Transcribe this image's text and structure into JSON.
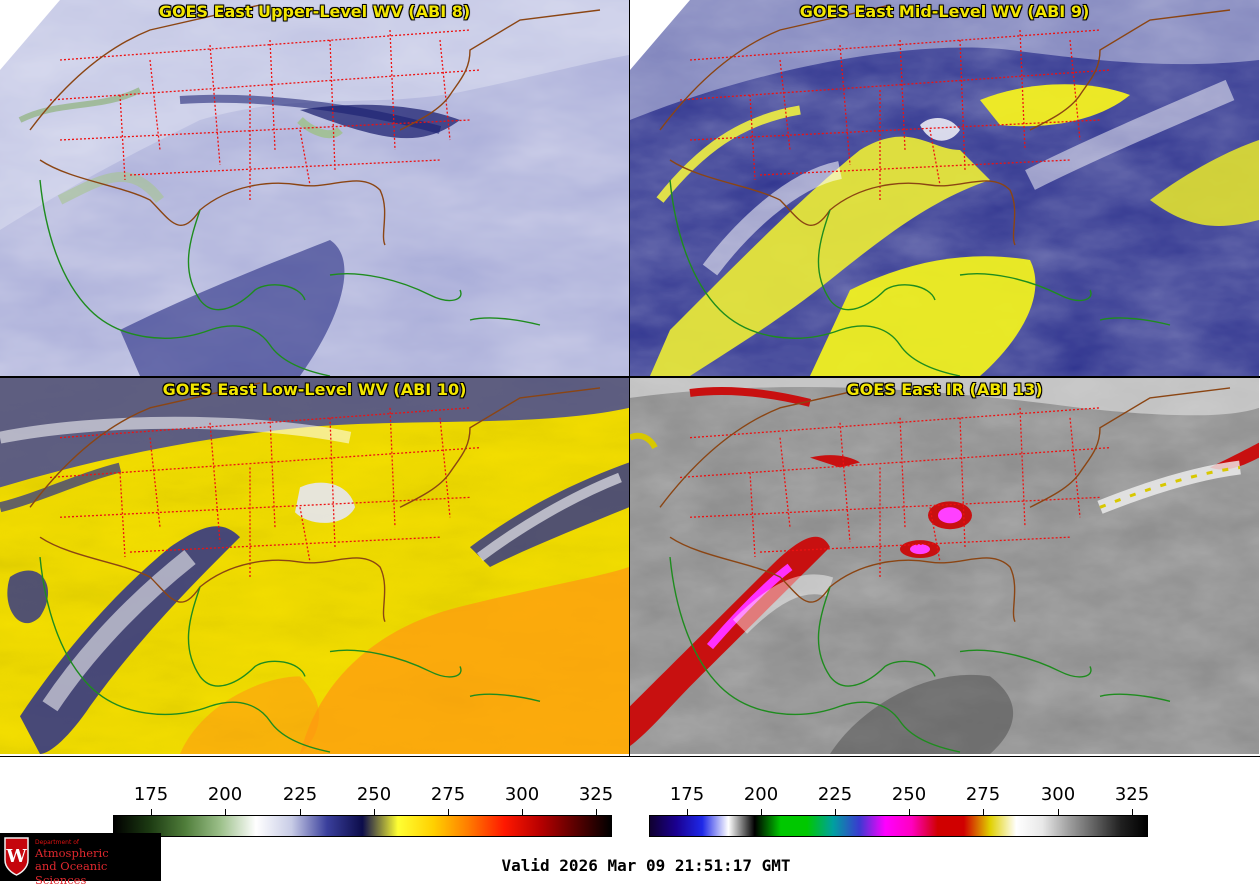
{
  "panels": [
    {
      "title": "GOES East Upper-Level WV (ABI 8)",
      "palette": "wv-upper"
    },
    {
      "title": "GOES East Mid-Level WV (ABI 9)",
      "palette": "wv-mid"
    },
    {
      "title": "GOES East Low-Level WV (ABI 10)",
      "palette": "wv-low"
    },
    {
      "title": "GOES East IR (ABI 13)",
      "palette": "ir"
    }
  ],
  "colorbar_wv": {
    "ticks": [
      "175",
      "200",
      "225",
      "250",
      "275",
      "300",
      "325"
    ],
    "range_k": [
      162,
      332
    ],
    "colors": [
      "#000000",
      "#1c3a12",
      "#4f7d3a",
      "#9cc08a",
      "#ffffff",
      "#c8cce6",
      "#3a3f9c",
      "#0c0c4a",
      "#ffff33",
      "#ffd000",
      "#ff7a00",
      "#ff1800",
      "#b80000",
      "#5a0000",
      "#000000"
    ]
  },
  "colorbar_ir": {
    "ticks": [
      "175",
      "200",
      "225",
      "250",
      "275",
      "300",
      "325"
    ],
    "range_k": [
      162,
      332
    ],
    "colors": [
      "#100030",
      "#1a0090",
      "#1e28e8",
      "#ffffff",
      "#000000",
      "#00c800",
      "#00c800",
      "#00a0a0",
      "#3a3ad0",
      "#ff00ff",
      "#ff00c0",
      "#d00000",
      "#d00000",
      "#e0d000",
      "#ffffff",
      "#e8e8e8",
      "#a0a0a0",
      "#606060",
      "#202020",
      "#000000"
    ]
  },
  "logo": {
    "dept_line": "Department of",
    "line1": "Atmospheric",
    "line2": "and Oceanic Sciences",
    "seal_letter": "W"
  },
  "valid_text": "Valid 2026 Mar 09 21:51:17 GMT"
}
